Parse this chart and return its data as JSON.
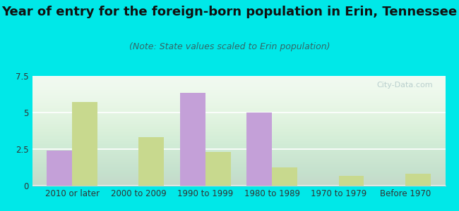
{
  "title": "Year of entry for the foreign-born population in Erin, Tennessee",
  "subtitle": "(Note: State values scaled to Erin population)",
  "categories": [
    "2010 or later",
    "2000 to 2009",
    "1990 to 1999",
    "1980 to 1989",
    "1970 to 1979",
    "Before 1970"
  ],
  "erin_values": [
    2.4,
    0,
    6.35,
    5.0,
    0,
    0
  ],
  "tennessee_values": [
    5.7,
    3.3,
    2.3,
    1.25,
    0.65,
    0.8
  ],
  "erin_color": "#c4a0d8",
  "tennessee_color": "#c8d98e",
  "bar_width": 0.38,
  "ylim": [
    0,
    7.5
  ],
  "yticks": [
    0,
    2.5,
    5,
    7.5
  ],
  "background_outer": "#00e8e8",
  "background_inner": "#e8f5e8",
  "title_fontsize": 13,
  "subtitle_fontsize": 9,
  "tick_fontsize": 8.5,
  "legend_fontsize": 10,
  "watermark_text": "City-Data.com"
}
